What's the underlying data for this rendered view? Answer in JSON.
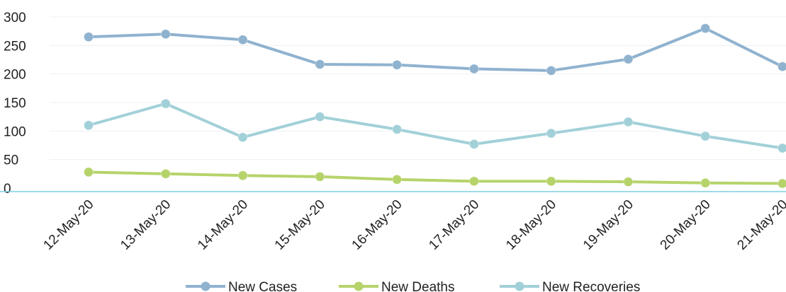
{
  "chart_data": {
    "type": "line",
    "title": "",
    "xlabel": "",
    "ylabel": "",
    "categories": [
      "12-May-20",
      "13-May-20",
      "14-May-20",
      "15-May-20",
      "16-May-20",
      "17-May-20",
      "18-May-20",
      "19-May-20",
      "20-May-20",
      "21-May-20"
    ],
    "ylim": [
      0,
      300
    ],
    "yticks": [
      0,
      50,
      100,
      150,
      200,
      250,
      300
    ],
    "grid": true,
    "legend_position": "bottom",
    "series": [
      {
        "name": "New Cases",
        "color": "#8fb2cf",
        "values": [
          265,
          270,
          260,
          217,
          216,
          209,
          206,
          226,
          280,
          213
        ]
      },
      {
        "name": "New Deaths",
        "color": "#b6d36a",
        "values": [
          28,
          25,
          22,
          20,
          15,
          12,
          12,
          11,
          9,
          8
        ]
      },
      {
        "name": "New Recoveries",
        "color": "#a2d0d8",
        "values": [
          110,
          148,
          89,
          125,
          103,
          77,
          96,
          116,
          91,
          70
        ]
      }
    ]
  }
}
